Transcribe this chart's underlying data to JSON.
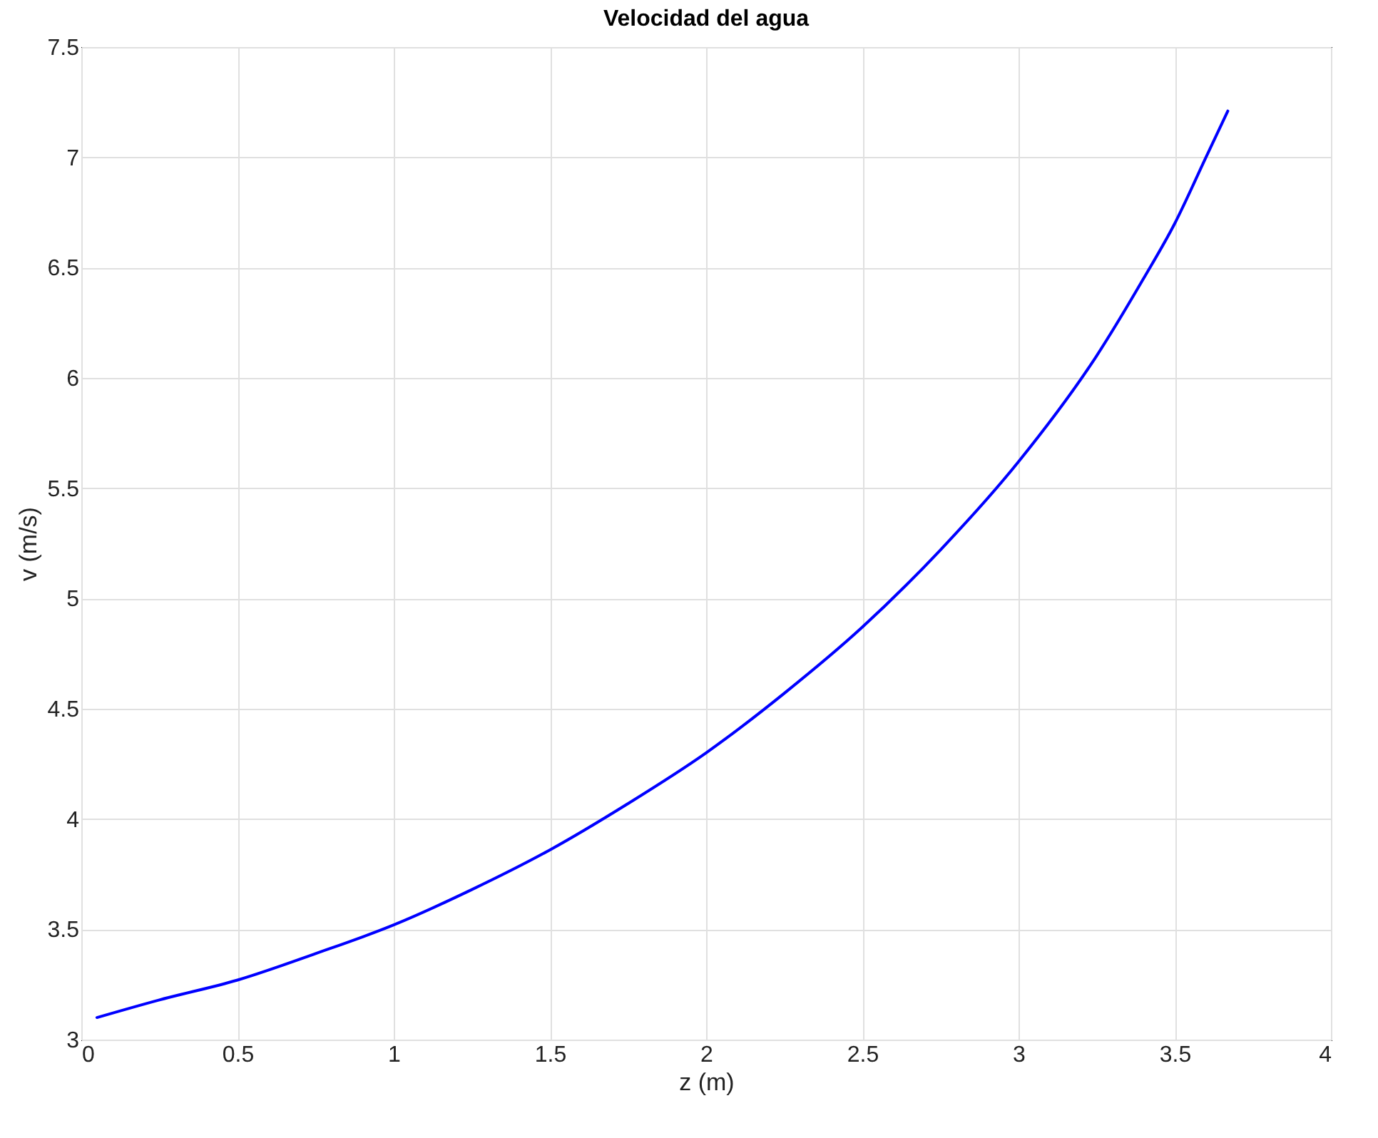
{
  "chart_data": {
    "type": "line",
    "title": "Velocidad del agua",
    "xlabel": "z (m)",
    "ylabel": "v (m/s)",
    "x": [
      0.05,
      0.25,
      0.5,
      0.75,
      1,
      1.25,
      1.5,
      1.75,
      2,
      2.25,
      2.5,
      2.75,
      3,
      3.25,
      3.4,
      3.5,
      3.6,
      3.67
    ],
    "series": [
      {
        "color": "#0000ff",
        "values": [
          3.1,
          3.18,
          3.27,
          3.39,
          3.52,
          3.68,
          3.86,
          4.07,
          4.3,
          4.57,
          4.87,
          5.22,
          5.62,
          6.1,
          6.45,
          6.7,
          7.0,
          7.21
        ]
      }
    ],
    "xlim": [
      0,
      4
    ],
    "xticks": [
      0,
      0.5,
      1,
      1.5,
      2,
      2.5,
      3,
      3.5,
      4
    ],
    "ylim": [
      3,
      7.5
    ],
    "yticks": [
      3,
      3.5,
      4,
      4.5,
      5,
      5.5,
      6,
      6.5,
      7,
      7.5
    ],
    "grid": true,
    "line_style": "solid",
    "marker": "none"
  }
}
